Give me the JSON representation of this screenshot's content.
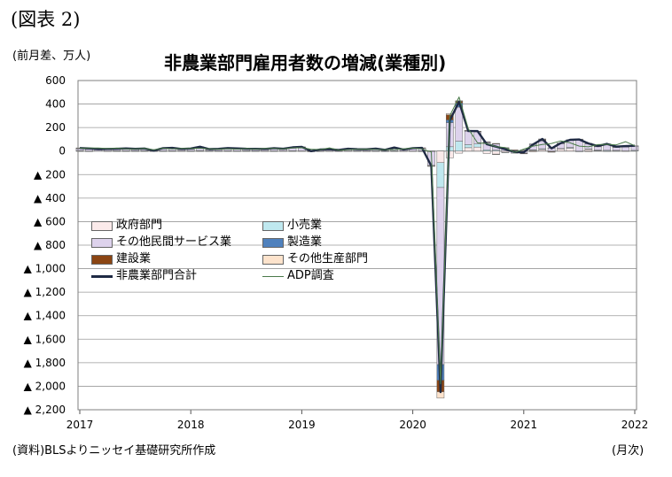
{
  "figure_label": "(図表 2)",
  "unit_label": "(前月差、万人)",
  "source_note": "(資料)BLSよりニッセイ基礎研究所作成",
  "x_unit_note": "(月次)",
  "colors": {
    "government": "#fbeaea",
    "retail": "#bfe8ef",
    "other_services": "#ddd2ec",
    "manufacturing": "#4f81bd",
    "construction": "#8b4513",
    "other_goods": "#fde3cc",
    "total_line": "#1f2a44",
    "adp_line": "#4a7a4a"
  },
  "legend": [
    {
      "label": "政府部門",
      "key": "government",
      "kind": "bar"
    },
    {
      "label": "小売業",
      "key": "retail",
      "kind": "bar"
    },
    {
      "label": "その他民間サービス業",
      "key": "other_services",
      "kind": "bar"
    },
    {
      "label": "製造業",
      "key": "manufacturing",
      "kind": "bar"
    },
    {
      "label": "建設業",
      "key": "construction",
      "kind": "bar"
    },
    {
      "label": "その他生産部門",
      "key": "other_goods",
      "kind": "bar"
    },
    {
      "label": "非農業部門合計",
      "key": "total_line",
      "kind": "line"
    },
    {
      "label": "ADP調査",
      "key": "adp_line",
      "kind": "line"
    }
  ],
  "chart_data": {
    "type": "bar",
    "title": "非農業部門雇用者数の増減(業種別)",
    "xlabel": "",
    "ylabel": "(前月差、万人)",
    "ylim": [
      -2200,
      600
    ],
    "y_ticks": [
      600,
      400,
      200,
      0,
      -200,
      -400,
      -600,
      -800,
      -1000,
      -1200,
      -1400,
      -1600,
      -1800,
      -2000,
      -2200
    ],
    "y_tick_labels": [
      "600",
      "400",
      "200",
      "0",
      "▲ 200",
      "▲ 400",
      "▲ 600",
      "▲ 800",
      "▲ 1,000",
      "▲ 1,200",
      "▲ 1,400",
      "▲ 1,600",
      "▲ 1,800",
      "▲ 2,000",
      "▲ 2,200"
    ],
    "x_tick_labels": [
      "2017",
      "2018",
      "2019",
      "2020",
      "2021",
      "2022"
    ],
    "months": [
      "2017-01",
      "2017-02",
      "2017-03",
      "2017-04",
      "2017-05",
      "2017-06",
      "2017-07",
      "2017-08",
      "2017-09",
      "2017-10",
      "2017-11",
      "2017-12",
      "2018-01",
      "2018-02",
      "2018-03",
      "2018-04",
      "2018-05",
      "2018-06",
      "2018-07",
      "2018-08",
      "2018-09",
      "2018-10",
      "2018-11",
      "2018-12",
      "2019-01",
      "2019-02",
      "2019-03",
      "2019-04",
      "2019-05",
      "2019-06",
      "2019-07",
      "2019-08",
      "2019-09",
      "2019-10",
      "2019-11",
      "2019-12",
      "2020-01",
      "2020-02",
      "2020-03",
      "2020-04",
      "2020-05",
      "2020-06",
      "2020-07",
      "2020-08",
      "2020-09",
      "2020-10",
      "2020-11",
      "2020-12",
      "2021-01",
      "2021-02",
      "2021-03",
      "2021-04",
      "2021-05",
      "2021-06",
      "2021-07",
      "2021-08",
      "2021-09",
      "2021-10",
      "2021-11",
      "2021-12",
      "2022-01"
    ],
    "series": [
      {
        "name": "政府部門",
        "key": "government",
        "values": [
          2,
          1,
          0,
          1,
          2,
          2,
          1,
          2,
          1,
          1,
          2,
          2,
          1,
          2,
          1,
          1,
          2,
          1,
          2,
          1,
          1,
          1,
          2,
          2,
          2,
          1,
          1,
          1,
          1,
          2,
          1,
          1,
          1,
          2,
          1,
          1,
          1,
          2,
          1,
          -98,
          -58,
          -18,
          29,
          34,
          -21,
          -26,
          -10,
          -3,
          8,
          7,
          13,
          -4,
          21,
          24,
          -1,
          17,
          4,
          1,
          3,
          2,
          0
        ]
      },
      {
        "name": "小売業",
        "key": "retail",
        "values": [
          2,
          -1,
          0,
          0,
          1,
          1,
          1,
          1,
          0,
          1,
          1,
          0,
          1,
          2,
          1,
          1,
          1,
          1,
          1,
          1,
          0,
          1,
          0,
          1,
          0,
          -1,
          -1,
          0,
          0,
          0,
          1,
          0,
          1,
          0,
          2,
          0,
          0,
          0,
          -4,
          -212,
          37,
          84,
          26,
          26,
          11,
          8,
          -3,
          1,
          0,
          4,
          7,
          -1,
          1,
          7,
          -2,
          1,
          5,
          6,
          3,
          0,
          6
        ]
      },
      {
        "name": "その他民間サービス業",
        "key": "other_services",
        "values": [
          19,
          18,
          14,
          15,
          15,
          16,
          14,
          14,
          2,
          20,
          18,
          12,
          15,
          23,
          11,
          13,
          18,
          17,
          13,
          15,
          12,
          19,
          13,
          24,
          28,
          2,
          12,
          16,
          7,
          15,
          13,
          14,
          18,
          12,
          21,
          12,
          20,
          23,
          -118,
          -1506,
          205,
          290,
          114,
          105,
          60,
          52,
          23,
          -15,
          -18,
          48,
          66,
          26,
          42,
          64,
          95,
          45,
          29,
          45,
          26,
          33,
          38
        ]
      },
      {
        "name": "製造業",
        "key": "manufacturing",
        "values": [
          1,
          1,
          1,
          1,
          1,
          2,
          2,
          3,
          0,
          2,
          3,
          2,
          2,
          3,
          2,
          2,
          2,
          3,
          2,
          1,
          2,
          3,
          3,
          3,
          1,
          0,
          0,
          1,
          0,
          1,
          1,
          0,
          0,
          -4,
          5,
          0,
          0,
          -1,
          -2,
          -133,
          23,
          35,
          4,
          3,
          6,
          4,
          3,
          4,
          -1,
          2,
          5,
          3,
          3,
          2,
          4,
          3,
          3,
          5,
          3,
          3,
          1
        ]
      },
      {
        "name": "建設業",
        "key": "construction",
        "values": [
          3,
          3,
          1,
          1,
          1,
          2,
          1,
          2,
          1,
          1,
          2,
          2,
          3,
          6,
          2,
          2,
          2,
          1,
          2,
          1,
          3,
          1,
          2,
          2,
          5,
          -3,
          2,
          0,
          1,
          2,
          0,
          1,
          1,
          1,
          1,
          0,
          4,
          3,
          -2,
          -99,
          43,
          15,
          3,
          1,
          2,
          1,
          2,
          5,
          -1,
          -5,
          11,
          -2,
          1,
          0,
          2,
          -1,
          2,
          3,
          3,
          3,
          0
        ]
      },
      {
        "name": "その他生産部門",
        "key": "other_goods",
        "values": [
          0,
          1,
          0,
          0,
          0,
          0,
          0,
          0,
          0,
          0,
          1,
          0,
          0,
          1,
          0,
          0,
          1,
          0,
          0,
          0,
          0,
          0,
          0,
          0,
          0,
          0,
          0,
          0,
          0,
          0,
          0,
          -1,
          0,
          0,
          0,
          0,
          0,
          0,
          -1,
          -53,
          10,
          4,
          1,
          0,
          0,
          -1,
          1,
          0,
          1,
          0,
          1,
          0,
          0,
          0,
          1,
          0,
          0,
          1,
          0,
          1,
          0
        ]
      },
      {
        "name": "非農業部門合計",
        "key": "total_line",
        "type": "line",
        "values": [
          26,
          23,
          16,
          18,
          20,
          23,
          19,
          22,
          4,
          25,
          27,
          18,
          22,
          37,
          17,
          19,
          26,
          23,
          20,
          19,
          18,
          25,
          20,
          32,
          36,
          -1,
          14,
          16,
          9,
          20,
          16,
          15,
          21,
          11,
          30,
          13,
          25,
          27,
          -126,
          -2050,
          260,
          420,
          170,
          170,
          58,
          38,
          16,
          -8,
          -11,
          56,
          103,
          23,
          68,
          96,
          99,
          65,
          43,
          61,
          38,
          42,
          45
        ]
      },
      {
        "name": "ADP調査",
        "key": "adp_line",
        "type": "line",
        "values": [
          24,
          26,
          26,
          21,
          25,
          19,
          18,
          22,
          11,
          24,
          19,
          23,
          22,
          24,
          20,
          17,
          20,
          17,
          22,
          17,
          23,
          23,
          18,
          27,
          29,
          16,
          13,
          27,
          8,
          12,
          16,
          17,
          14,
          13,
          13,
          20,
          25,
          18,
          -8,
          -1980,
          300,
          460,
          190,
          70,
          64,
          38,
          30,
          -12,
          17,
          42,
          56,
          65,
          87,
          70,
          42,
          36,
          55,
          57,
          53,
          80,
          45
        ]
      }
    ]
  }
}
